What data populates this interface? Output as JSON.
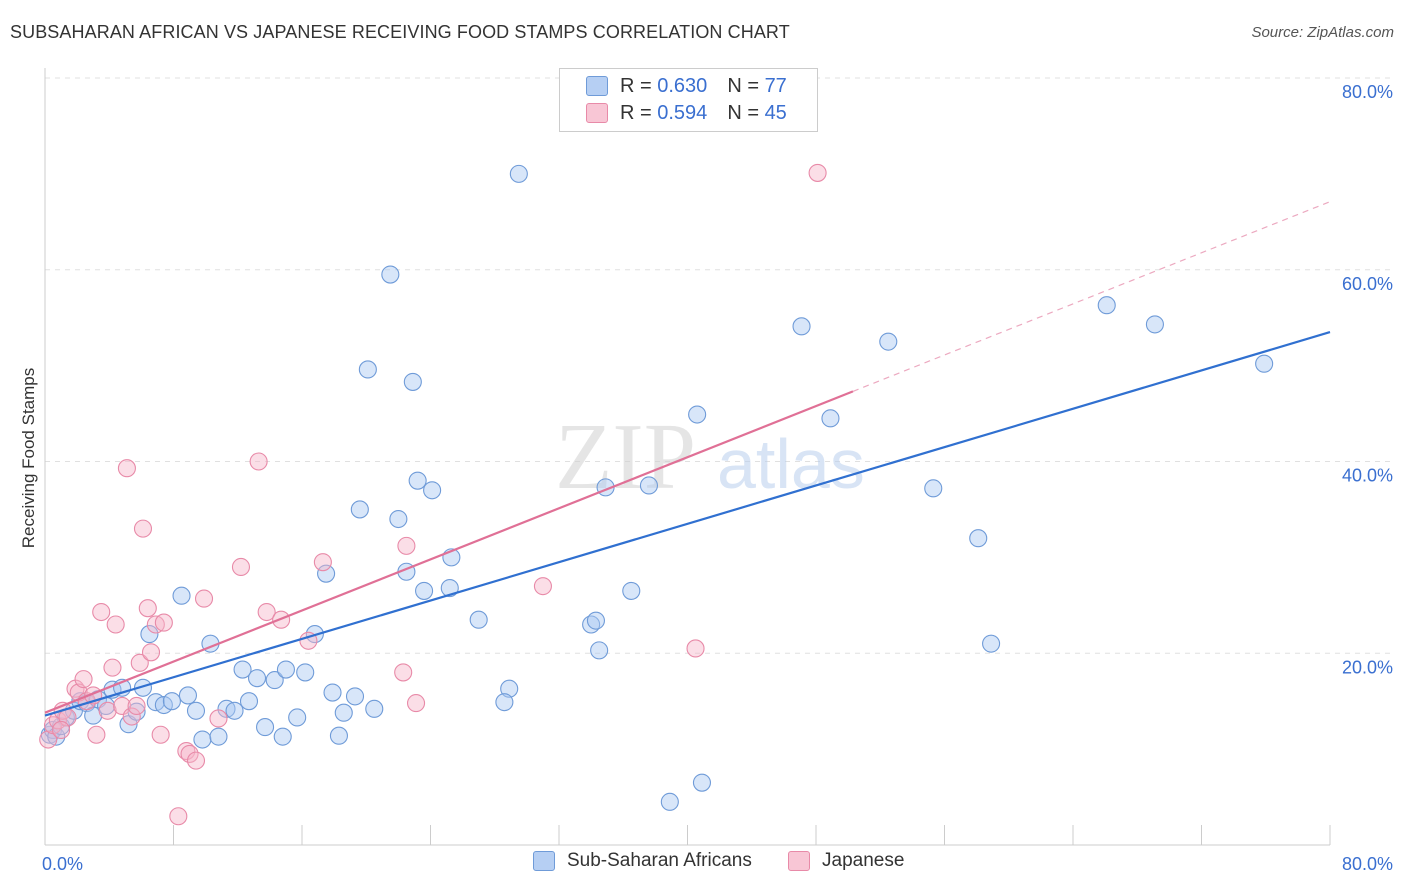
{
  "title": "SUBSAHARAN AFRICAN VS JAPANESE RECEIVING FOOD STAMPS CORRELATION CHART",
  "source": "Source: ZipAtlas.com",
  "watermark": {
    "zip": "ZIP",
    "atlas": "atlas"
  },
  "legend": {
    "r_label": "R =",
    "n_label": "N =",
    "rows": [
      {
        "r": "0.630",
        "n": "77"
      },
      {
        "r": "0.594",
        "n": "45"
      }
    ]
  },
  "colors": {
    "blue_fill": "#a9c8f2",
    "blue_stroke": "#6f9bd8",
    "blue_line": "#3070d0",
    "pink_fill": "#f6b6c9",
    "pink_stroke": "#e88aa8",
    "pink_line": "#e07096",
    "tick_text": "#3a6fd0",
    "grid": "#e0e0e0"
  },
  "chart_data": {
    "type": "scatter",
    "title": "SUBSAHARAN AFRICAN VS JAPANESE RECEIVING FOOD STAMPS CORRELATION CHART",
    "xlabel": "",
    "ylabel": "Receiving Food Stamps",
    "xlim": [
      0,
      80
    ],
    "ylim": [
      0,
      80
    ],
    "x_tick_labels": [
      "0.0%",
      "80.0%"
    ],
    "y_ticks": [
      20,
      40,
      60,
      80
    ],
    "y_tick_labels": [
      "20.0%",
      "40.0%",
      "60.0%",
      "80.0%"
    ],
    "grid": true,
    "legend_position": "top-center",
    "series": [
      {
        "name": "Sub-Saharan Africans",
        "color": "#a9c8f2",
        "trend": {
          "x": [
            0,
            80
          ],
          "y": [
            13.5,
            53.5
          ],
          "style": "solid"
        },
        "points": [
          [
            0.3,
            11.5
          ],
          [
            0.5,
            12.0
          ],
          [
            0.7,
            11.3
          ],
          [
            1.0,
            12.4
          ],
          [
            1.3,
            13.3
          ],
          [
            1.8,
            14.0
          ],
          [
            2.2,
            15.0
          ],
          [
            2.6,
            14.8
          ],
          [
            3.0,
            13.5
          ],
          [
            3.3,
            15.2
          ],
          [
            3.8,
            14.5
          ],
          [
            4.2,
            16.2
          ],
          [
            4.8,
            16.4
          ],
          [
            5.2,
            12.6
          ],
          [
            5.7,
            13.9
          ],
          [
            6.1,
            16.4
          ],
          [
            6.5,
            22.0
          ],
          [
            6.9,
            14.9
          ],
          [
            7.4,
            14.6
          ],
          [
            7.9,
            15.0
          ],
          [
            8.5,
            26.0
          ],
          [
            8.9,
            15.6
          ],
          [
            9.4,
            14.0
          ],
          [
            9.8,
            11.0
          ],
          [
            10.3,
            21.0
          ],
          [
            10.8,
            11.3
          ],
          [
            11.3,
            14.2
          ],
          [
            11.8,
            14.0
          ],
          [
            12.3,
            18.3
          ],
          [
            12.7,
            15.0
          ],
          [
            13.2,
            17.4
          ],
          [
            13.7,
            12.3
          ],
          [
            14.3,
            17.2
          ],
          [
            14.8,
            11.3
          ],
          [
            15.0,
            18.3
          ],
          [
            15.7,
            13.3
          ],
          [
            16.2,
            18.0
          ],
          [
            16.8,
            22.0
          ],
          [
            17.5,
            28.3
          ],
          [
            17.9,
            15.9
          ],
          [
            18.3,
            11.4
          ],
          [
            18.6,
            13.8
          ],
          [
            19.3,
            15.5
          ],
          [
            19.6,
            35.0
          ],
          [
            20.1,
            49.6
          ],
          [
            20.5,
            14.2
          ],
          [
            21.5,
            59.5
          ],
          [
            22.0,
            34.0
          ],
          [
            22.5,
            28.5
          ],
          [
            22.9,
            48.3
          ],
          [
            23.2,
            38.0
          ],
          [
            23.6,
            26.5
          ],
          [
            24.1,
            37.0
          ],
          [
            25.3,
            30.0
          ],
          [
            25.2,
            26.8
          ],
          [
            27.0,
            23.5
          ],
          [
            28.9,
            16.3
          ],
          [
            28.6,
            14.9
          ],
          [
            29.5,
            70.0
          ],
          [
            34.0,
            23.0
          ],
          [
            34.5,
            20.3
          ],
          [
            34.9,
            37.3
          ],
          [
            34.3,
            23.4
          ],
          [
            36.5,
            26.5
          ],
          [
            37.6,
            37.5
          ],
          [
            38.9,
            4.5
          ],
          [
            40.6,
            44.9
          ],
          [
            40.9,
            6.5
          ],
          [
            47.1,
            54.1
          ],
          [
            48.9,
            44.5
          ],
          [
            52.5,
            52.5
          ],
          [
            55.3,
            37.2
          ],
          [
            58.1,
            32.0
          ],
          [
            58.9,
            21.0
          ],
          [
            66.1,
            56.3
          ],
          [
            69.1,
            54.3
          ],
          [
            75.9,
            50.2
          ]
        ]
      },
      {
        "name": "Japanese",
        "color": "#f6b6c9",
        "trend": {
          "x": [
            0,
            80
          ],
          "y": [
            13.8,
            67.1
          ],
          "style": "solid-then-dashed",
          "solid_until_x": 50.3
        },
        "points": [
          [
            0.2,
            11.0
          ],
          [
            0.5,
            12.5
          ],
          [
            0.8,
            13.0
          ],
          [
            1.1,
            14.0
          ],
          [
            1.4,
            13.3
          ],
          [
            1.9,
            16.3
          ],
          [
            2.1,
            15.9
          ],
          [
            2.4,
            17.3
          ],
          [
            2.6,
            15.0
          ],
          [
            3.0,
            15.6
          ],
          [
            3.2,
            11.5
          ],
          [
            3.5,
            24.3
          ],
          [
            3.9,
            14.0
          ],
          [
            4.2,
            18.5
          ],
          [
            4.4,
            23.0
          ],
          [
            4.8,
            14.5
          ],
          [
            5.1,
            39.3
          ],
          [
            5.4,
            13.4
          ],
          [
            5.7,
            14.5
          ],
          [
            5.9,
            19.0
          ],
          [
            6.1,
            33.0
          ],
          [
            6.4,
            24.7
          ],
          [
            6.6,
            20.1
          ],
          [
            6.9,
            23.0
          ],
          [
            7.2,
            11.5
          ],
          [
            7.4,
            23.2
          ],
          [
            8.3,
            3.0
          ],
          [
            8.8,
            9.8
          ],
          [
            9.0,
            9.5
          ],
          [
            9.4,
            8.8
          ],
          [
            9.9,
            25.7
          ],
          [
            10.8,
            13.2
          ],
          [
            12.2,
            29.0
          ],
          [
            13.3,
            40.0
          ],
          [
            13.8,
            24.3
          ],
          [
            14.7,
            23.5
          ],
          [
            16.4,
            21.3
          ],
          [
            17.3,
            29.5
          ],
          [
            22.3,
            18.0
          ],
          [
            22.5,
            31.2
          ],
          [
            23.1,
            14.8
          ],
          [
            31.0,
            27.0
          ],
          [
            40.5,
            20.5
          ],
          [
            48.1,
            70.1
          ],
          [
            1.0,
            12.0
          ]
        ]
      }
    ]
  },
  "bottom_legend": [
    {
      "label": "Sub-Saharan Africans"
    },
    {
      "label": "Japanese"
    }
  ]
}
